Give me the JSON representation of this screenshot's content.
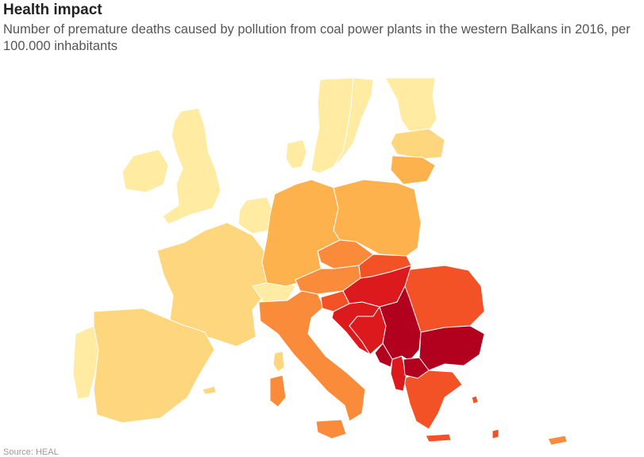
{
  "header": {
    "title": "Health impact",
    "subtitle": "Number of premature deaths caused by pollution from coal power plants in the western Balkans in 2016, per 100.000 inhabitants"
  },
  "footer": {
    "source": "Source: HEAL"
  },
  "colors": {
    "lowest": "#FFEBA1",
    "low": "#FED67E",
    "medium": "#FDB24E",
    "medium_high": "#F98B3A",
    "high": "#F35126",
    "very_high": "#DC1A1E",
    "highest": "#B2001F",
    "border": "#ffffff"
  }
}
